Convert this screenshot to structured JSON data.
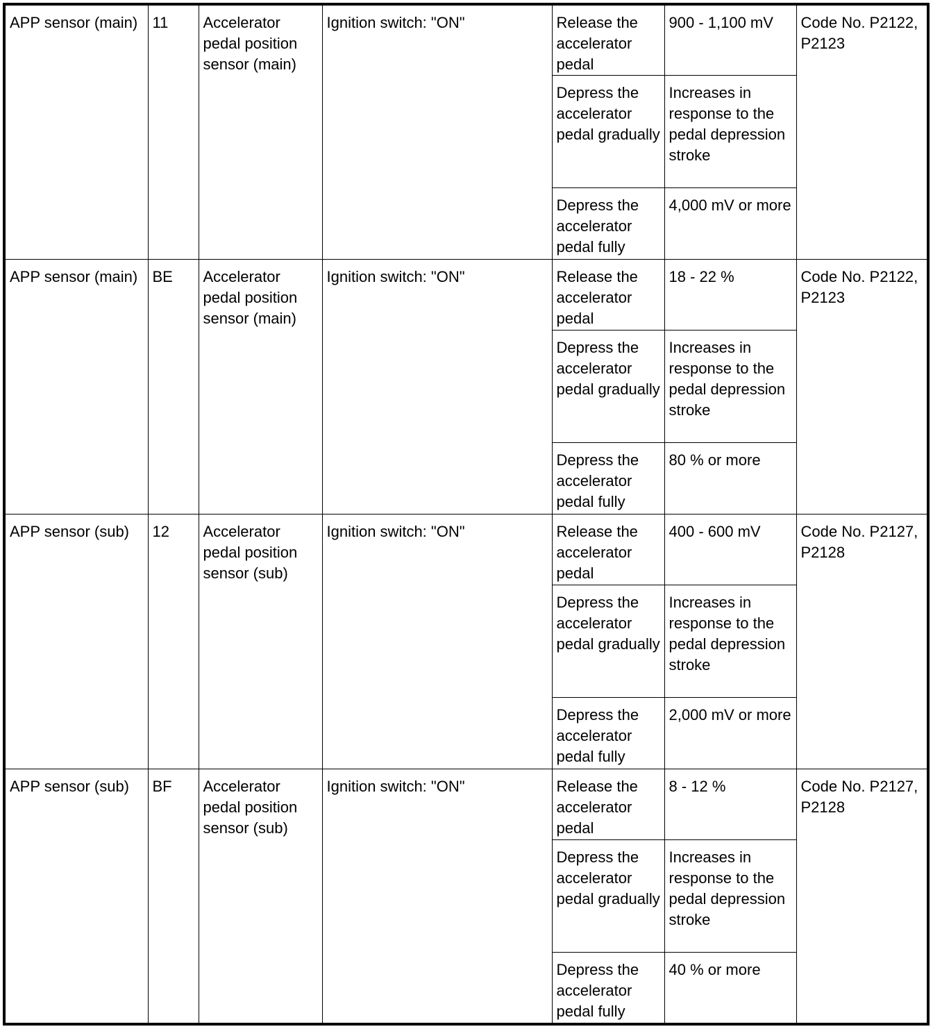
{
  "rows": [
    {
      "item": "APP sensor (main)",
      "terminal": "11",
      "description": "Accelerator pedal position sensor (main)",
      "condition": "Ignition switch: \"ON\"",
      "checks": [
        {
          "state": "Release the accelerator pedal",
          "value": "900 - 1,100 mV"
        },
        {
          "state": "Depress the accelerator pedal gradually",
          "value": "Increases in response to the pedal depression stroke"
        },
        {
          "state": "Depress the accelerator pedal fully",
          "value": "4,000 mV or more"
        }
      ],
      "codes": "Code No. P2122, P2123"
    },
    {
      "item": "APP sensor (main)",
      "terminal": "BE",
      "description": "Accelerator pedal position sensor (main)",
      "condition": "Ignition switch: \"ON\"",
      "checks": [
        {
          "state": "Release the accelerator pedal",
          "value": "18 - 22 %"
        },
        {
          "state": "Depress the accelerator pedal gradually",
          "value": "Increases in response to the pedal depression stroke"
        },
        {
          "state": "Depress the accelerator pedal fully",
          "value": "80 % or more"
        }
      ],
      "codes": "Code No. P2122, P2123"
    },
    {
      "item": "APP sensor (sub)",
      "terminal": "12",
      "description": "Accelerator pedal position sensor (sub)",
      "condition": "Ignition switch: \"ON\"",
      "checks": [
        {
          "state": "Release the accelerator pedal",
          "value": "400 - 600 mV"
        },
        {
          "state": "Depress the accelerator pedal gradually",
          "value": "Increases in response to the pedal depression stroke"
        },
        {
          "state": "Depress the accelerator pedal fully",
          "value": "2,000 mV or more"
        }
      ],
      "codes": "Code No. P2127, P2128"
    },
    {
      "item": "APP sensor (sub)",
      "terminal": "BF",
      "description": "Accelerator pedal position sensor (sub)",
      "condition": "Ignition switch: \"ON\"",
      "checks": [
        {
          "state": "Release the accelerator pedal",
          "value": "8 - 12 %"
        },
        {
          "state": "Depress the accelerator pedal gradually",
          "value": "Increases in response to the pedal depression stroke"
        },
        {
          "state": "Depress the accelerator pedal fully",
          "value": "40 % or more"
        }
      ],
      "codes": "Code No. P2127, P2128"
    }
  ]
}
